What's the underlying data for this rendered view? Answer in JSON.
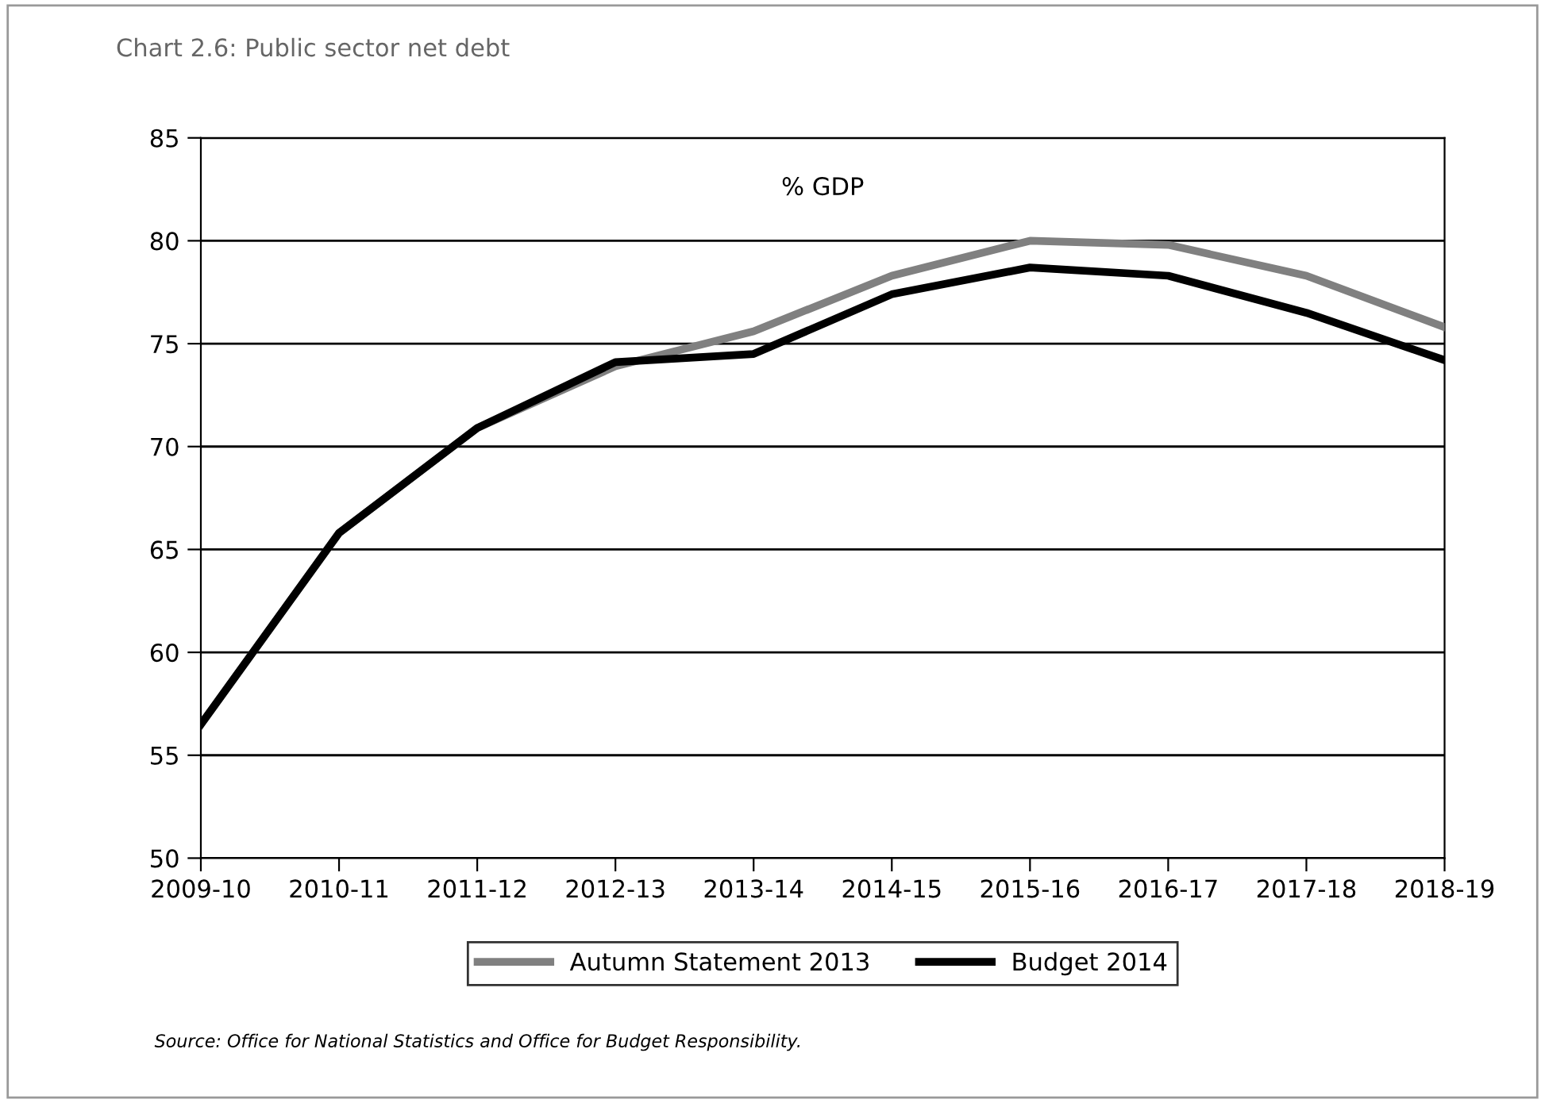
{
  "chart_data": {
    "type": "line",
    "title": "Chart 2.6: Public sector net debt",
    "annotations": [
      "% GDP",
      "Source: Office for National Statistics and Office for Budget Responsibility."
    ],
    "categories": [
      "2009-10",
      "2010-11",
      "2011-12",
      "2012-13",
      "2013-14",
      "2014-15",
      "2015-16",
      "2016-17",
      "2017-18",
      "2018-19"
    ],
    "series": [
      {
        "name": "Autumn Statement 2013",
        "color": "#808080",
        "values": [
          56.5,
          65.8,
          70.9,
          73.9,
          75.6,
          78.3,
          80.0,
          79.8,
          78.3,
          75.8
        ]
      },
      {
        "name": "Budget 2014",
        "color": "#000000",
        "values": [
          56.5,
          65.8,
          70.9,
          74.1,
          74.5,
          77.4,
          78.7,
          78.3,
          76.5,
          74.2
        ]
      }
    ],
    "ylim": [
      50,
      85
    ],
    "yticks": [
      50,
      55,
      60,
      65,
      70,
      75,
      80,
      85
    ],
    "grid": "y",
    "legend": "bottom",
    "marker": "none",
    "line_style": "solid"
  }
}
